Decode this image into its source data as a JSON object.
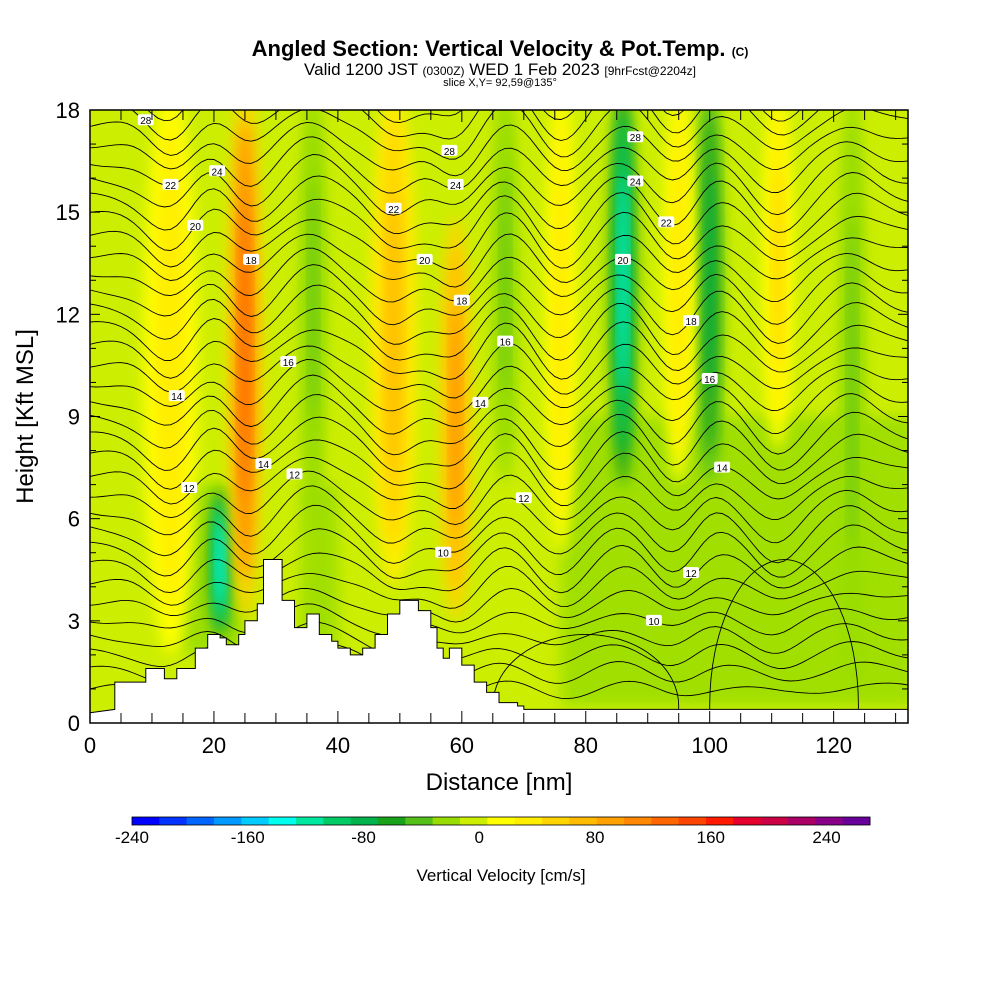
{
  "chart_data": {
    "type": "heatmap",
    "title": "Angled Section: Vertical Velocity & Pot.Temp.",
    "title_mark": "(C)",
    "subtitle_pre": "Valid 1200 JST",
    "subtitle_utc": "(0300Z)",
    "subtitle_date": "WED 1 Feb 2023",
    "subtitle_fcst": "[9hrFcst@2204z]",
    "slice_label": "slice X,Y= 92,59@135°",
    "xlabel": "Distance [nm]",
    "ylabel": "Height [Kft MSL]",
    "xlim": [
      0,
      132
    ],
    "ylim": [
      0,
      18
    ],
    "x_ticks": [
      0,
      20,
      40,
      60,
      80,
      100,
      120
    ],
    "y_ticks": [
      0,
      3,
      6,
      9,
      12,
      15,
      18
    ],
    "colorbar": {
      "label": "Vertical Velocity [cm/s]",
      "range": [
        -240,
        270
      ],
      "ticks": [
        -240,
        -160,
        -80,
        0,
        80,
        160,
        240
      ],
      "colors": [
        "#0000ff",
        "#0033ff",
        "#0066ff",
        "#0099ff",
        "#00ccff",
        "#00ffee",
        "#00e8a0",
        "#00cc66",
        "#00b34d",
        "#1aa31a",
        "#55c01a",
        "#99dd00",
        "#ccee00",
        "#ffff00",
        "#ffee00",
        "#ffd400",
        "#ffbb00",
        "#ffa200",
        "#ff8800",
        "#ff6600",
        "#ff4400",
        "#ff1a00",
        "#e6002e",
        "#cc0044",
        "#aa0066",
        "#880088",
        "#660099"
      ]
    },
    "updraft_columns": [
      {
        "x": 13,
        "w": 7,
        "z0": 2,
        "z1": 18,
        "w_cms": 40
      },
      {
        "x": 25,
        "w": 4.5,
        "z0": 3,
        "z1": 18,
        "w_cms": 130
      },
      {
        "x": 49,
        "w": 6,
        "z0": 4,
        "z1": 18,
        "w_cms": 70
      },
      {
        "x": 59,
        "w": 4,
        "z0": 3,
        "z1": 14,
        "w_cms": 100
      },
      {
        "x": 76,
        "w": 4,
        "z0": 5,
        "z1": 18,
        "w_cms": 40
      },
      {
        "x": 95,
        "w": 4,
        "z0": 7,
        "z1": 18,
        "w_cms": 40
      },
      {
        "x": 111,
        "w": 4,
        "z0": 8,
        "z1": 18,
        "w_cms": 50
      }
    ],
    "downdraft_columns": [
      {
        "x": 21,
        "w": 3,
        "z0": 2.5,
        "z1": 6,
        "w_cms": -140
      },
      {
        "x": 36,
        "w": 3.5,
        "z0": 6,
        "z1": 18,
        "w_cms": -40
      },
      {
        "x": 67,
        "w": 3.5,
        "z0": 7,
        "z1": 18,
        "w_cms": -40
      },
      {
        "x": 86,
        "w": 3.5,
        "z0": 7,
        "z1": 18,
        "w_cms": -130
      },
      {
        "x": 100,
        "w": 3.5,
        "z0": 7,
        "z1": 18,
        "w_cms": -80
      },
      {
        "x": 123,
        "w": 3.5,
        "z0": 1,
        "z1": 18,
        "w_cms": -40
      }
    ],
    "terrain_kft": [
      [
        0,
        0.3
      ],
      [
        4,
        0.4
      ],
      [
        4,
        1.2
      ],
      [
        9,
        1.2
      ],
      [
        9,
        1.6
      ],
      [
        12,
        1.6
      ],
      [
        12,
        1.3
      ],
      [
        14,
        1.3
      ],
      [
        14,
        1.6
      ],
      [
        17,
        1.6
      ],
      [
        17,
        2.2
      ],
      [
        19,
        2.2
      ],
      [
        19,
        2.6
      ],
      [
        21,
        2.6
      ],
      [
        21,
        2.5
      ],
      [
        22,
        2.5
      ],
      [
        22,
        2.3
      ],
      [
        24,
        2.3
      ],
      [
        24,
        2.6
      ],
      [
        25,
        2.6
      ],
      [
        25,
        3.0
      ],
      [
        27,
        3.0
      ],
      [
        27,
        3.5
      ],
      [
        28,
        3.5
      ],
      [
        28,
        4.8
      ],
      [
        31,
        4.8
      ],
      [
        31,
        3.6
      ],
      [
        33,
        3.6
      ],
      [
        33,
        2.8
      ],
      [
        35,
        2.8
      ],
      [
        35,
        3.2
      ],
      [
        37,
        3.2
      ],
      [
        37,
        2.6
      ],
      [
        39,
        2.6
      ],
      [
        39,
        2.4
      ],
      [
        40,
        2.4
      ],
      [
        40,
        2.2
      ],
      [
        42,
        2.2
      ],
      [
        42,
        2.0
      ],
      [
        44,
        2.0
      ],
      [
        44,
        2.2
      ],
      [
        46,
        2.2
      ],
      [
        46,
        2.6
      ],
      [
        48,
        2.6
      ],
      [
        48,
        3.2
      ],
      [
        50,
        3.2
      ],
      [
        50,
        3.6
      ],
      [
        53,
        3.6
      ],
      [
        53,
        3.3
      ],
      [
        55,
        3.3
      ],
      [
        55,
        2.8
      ],
      [
        56,
        2.8
      ],
      [
        56,
        2.2
      ],
      [
        57,
        2.2
      ],
      [
        57,
        1.9
      ],
      [
        58,
        1.9
      ],
      [
        58,
        2.2
      ],
      [
        60,
        2.2
      ],
      [
        60,
        1.7
      ],
      [
        62,
        1.7
      ],
      [
        62,
        1.2
      ],
      [
        64,
        1.2
      ],
      [
        64,
        0.9
      ],
      [
        66,
        0.9
      ],
      [
        66,
        0.6
      ],
      [
        69,
        0.6
      ],
      [
        69,
        0.5
      ],
      [
        70,
        0.5
      ],
      [
        70,
        0.4
      ],
      [
        132,
        0.4
      ]
    ],
    "contour_labels": [
      {
        "text": "28",
        "x": 9,
        "y": 17.7
      },
      {
        "text": "24",
        "x": 20.5,
        "y": 16.2
      },
      {
        "text": "22",
        "x": 13,
        "y": 15.8
      },
      {
        "text": "20",
        "x": 17,
        "y": 14.6
      },
      {
        "text": "18",
        "x": 26,
        "y": 13.6
      },
      {
        "text": "16",
        "x": 32,
        "y": 10.6
      },
      {
        "text": "14",
        "x": 14,
        "y": 9.6
      },
      {
        "text": "14",
        "x": 28,
        "y": 7.6
      },
      {
        "text": "12",
        "x": 16,
        "y": 6.9
      },
      {
        "text": "12",
        "x": 33,
        "y": 7.3
      },
      {
        "text": "28",
        "x": 58,
        "y": 16.8
      },
      {
        "text": "24",
        "x": 59,
        "y": 15.8
      },
      {
        "text": "22",
        "x": 49,
        "y": 15.1
      },
      {
        "text": "20",
        "x": 54,
        "y": 13.6
      },
      {
        "text": "18",
        "x": 60,
        "y": 12.4
      },
      {
        "text": "16",
        "x": 67,
        "y": 11.2
      },
      {
        "text": "14",
        "x": 63,
        "y": 9.4
      },
      {
        "text": "12",
        "x": 70,
        "y": 6.6
      },
      {
        "text": "10",
        "x": 57,
        "y": 5.0
      },
      {
        "text": "28",
        "x": 88,
        "y": 17.2
      },
      {
        "text": "24",
        "x": 88,
        "y": 15.9
      },
      {
        "text": "22",
        "x": 93,
        "y": 14.7
      },
      {
        "text": "20",
        "x": 86,
        "y": 13.6
      },
      {
        "text": "18",
        "x": 97,
        "y": 11.8
      },
      {
        "text": "16",
        "x": 100,
        "y": 10.1
      },
      {
        "text": "14",
        "x": 102,
        "y": 7.5
      },
      {
        "text": "12",
        "x": 97,
        "y": 4.4
      },
      {
        "text": "10",
        "x": 91,
        "y": 3.0
      }
    ]
  }
}
